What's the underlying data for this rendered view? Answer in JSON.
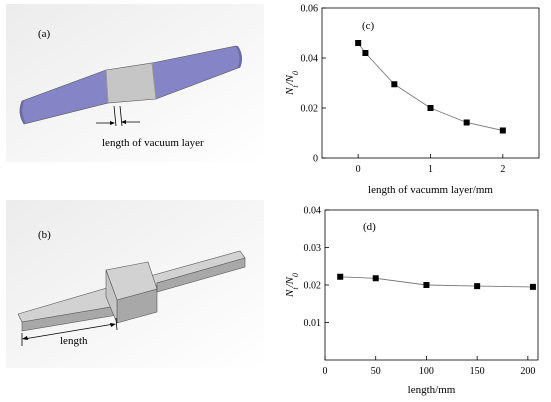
{
  "panels": {
    "a": {
      "label": "(a)",
      "annotation": "length of vacuum layer"
    },
    "b": {
      "label": "(b)",
      "annotation": "length"
    }
  },
  "colors": {
    "blade": "#8484c6",
    "blade_dark": "#6c6cae",
    "block": "#c6c6c6",
    "bar_top": "#d2d2d2",
    "bar_side": "#a8a8a8",
    "marker": "#000000",
    "line": "#7a7a7a"
  },
  "chart_data": [
    {
      "type": "line",
      "panel_label": "(c)",
      "x": [
        0,
        0.1,
        0.5,
        1,
        1.5,
        2
      ],
      "values": [
        0.046,
        0.042,
        0.0295,
        0.02,
        0.0142,
        0.011
      ],
      "xlabel": "length of vacumm layer/mm",
      "ylabel_main": "N",
      "ylabel_sub1": "t",
      "ylabel_sub2": "0",
      "xlim": [
        -0.5,
        2.5
      ],
      "ylim": [
        0,
        0.06
      ],
      "xticks": [
        0,
        1,
        2
      ],
      "yticks": [
        0,
        0.02,
        0.04,
        0.06
      ],
      "ytick_labels": [
        "0",
        "0.02",
        "0.04",
        "0.06"
      ],
      "grid": false,
      "marker": "square"
    },
    {
      "type": "line",
      "panel_label": "(d)",
      "x": [
        15,
        50,
        100,
        150,
        205
      ],
      "values": [
        0.0222,
        0.0218,
        0.02,
        0.0197,
        0.0195
      ],
      "xlabel": "length/mm",
      "ylabel_main": "N",
      "ylabel_sub1": "t",
      "ylabel_sub2": "0",
      "xlim": [
        0,
        210
      ],
      "ylim": [
        0,
        0.04
      ],
      "xticks": [
        0,
        50,
        100,
        150,
        200
      ],
      "yticks": [
        0.01,
        0.02,
        0.03,
        0.04
      ],
      "ytick_labels": [
        "0.01",
        "0.02",
        "0.03",
        "0.04"
      ],
      "grid": false,
      "marker": "square"
    }
  ]
}
